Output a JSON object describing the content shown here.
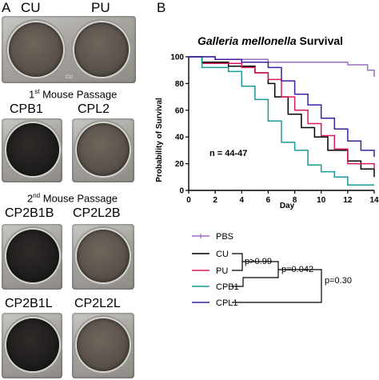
{
  "panel_a": {
    "letter": "A",
    "top_labels": [
      "CU",
      "PU"
    ],
    "passage1_title_num": "1",
    "passage1_title_sup": "st",
    "passage1_title_rest": " Mouse Passage",
    "passage1_labels": [
      "CPB1",
      "CPL2"
    ],
    "passage2_title_num": "2",
    "passage2_title_sup": "nd",
    "passage2_title_rest": " Mouse Passage",
    "passage2_labels_row1": [
      "CP2B1B",
      "CP2L2B"
    ],
    "passage2_labels_row2": [
      "CP2B1L",
      "CP2L2L"
    ],
    "plate_watermark": "CU"
  },
  "panel_b": {
    "letter": "B",
    "annotation": "n = 44-47",
    "legend": {
      "entries": [
        "PBS",
        "CU",
        "PU",
        "CPB1",
        "CPL1"
      ],
      "comparisons": [
        "p>0.99",
        "p=0.042",
        "p=0.30"
      ]
    }
  },
  "colors": {
    "PBS": "#9b6fc3",
    "CU": "#000000",
    "PU": "#d81b60",
    "CPB1": "#1a9a96",
    "CPL1": "#3d1f9e"
  },
  "chart_data": {
    "type": "line",
    "title_italic": "Galleria mellonella",
    "title_rest": " Survival",
    "xlabel": "Day",
    "ylabel": "Probability of Survival",
    "xlim": [
      0,
      14
    ],
    "ylim": [
      0,
      100
    ],
    "xticks": [
      0,
      2,
      4,
      6,
      8,
      10,
      12,
      14
    ],
    "yticks": [
      0,
      20,
      40,
      60,
      80,
      100
    ],
    "grid": false,
    "series": [
      {
        "name": "PBS",
        "step": [
          [
            0,
            100
          ],
          [
            2,
            100
          ],
          [
            2,
            98
          ],
          [
            6,
            98
          ],
          [
            6,
            96
          ],
          [
            12,
            96
          ],
          [
            12,
            94
          ],
          [
            13.5,
            94
          ],
          [
            13.5,
            90
          ],
          [
            14,
            90
          ],
          [
            14,
            85
          ]
        ]
      },
      {
        "name": "CU",
        "step": [
          [
            0,
            100
          ],
          [
            1,
            100
          ],
          [
            1,
            96
          ],
          [
            3,
            96
          ],
          [
            3,
            93
          ],
          [
            5,
            93
          ],
          [
            5,
            88
          ],
          [
            6,
            88
          ],
          [
            6,
            80
          ],
          [
            6.5,
            80
          ],
          [
            6.5,
            70
          ],
          [
            7.5,
            70
          ],
          [
            7.5,
            57
          ],
          [
            8.5,
            57
          ],
          [
            8.5,
            47
          ],
          [
            9.5,
            47
          ],
          [
            9.5,
            40
          ],
          [
            10.5,
            40
          ],
          [
            10.5,
            30
          ],
          [
            12,
            30
          ],
          [
            12,
            22
          ],
          [
            13,
            22
          ],
          [
            13,
            16
          ],
          [
            14,
            16
          ],
          [
            14,
            10
          ]
        ]
      },
      {
        "name": "PU",
        "step": [
          [
            0,
            100
          ],
          [
            1,
            100
          ],
          [
            1,
            95
          ],
          [
            4,
            95
          ],
          [
            4,
            92
          ],
          [
            5,
            92
          ],
          [
            5,
            88
          ],
          [
            6,
            88
          ],
          [
            6,
            83
          ],
          [
            7,
            83
          ],
          [
            7,
            70
          ],
          [
            8,
            70
          ],
          [
            8,
            60
          ],
          [
            9,
            60
          ],
          [
            9,
            50
          ],
          [
            10,
            50
          ],
          [
            10,
            41
          ],
          [
            11,
            41
          ],
          [
            11,
            31
          ],
          [
            12,
            31
          ],
          [
            12,
            20
          ],
          [
            14,
            20
          ],
          [
            14,
            16
          ]
        ]
      },
      {
        "name": "CPB1",
        "step": [
          [
            0,
            100
          ],
          [
            1,
            100
          ],
          [
            1,
            92
          ],
          [
            3,
            92
          ],
          [
            3,
            89
          ],
          [
            4,
            89
          ],
          [
            4,
            78
          ],
          [
            5,
            78
          ],
          [
            5,
            68
          ],
          [
            6,
            68
          ],
          [
            6,
            52
          ],
          [
            7,
            52
          ],
          [
            7,
            36
          ],
          [
            8,
            36
          ],
          [
            8,
            30
          ],
          [
            9,
            30
          ],
          [
            9,
            19
          ],
          [
            10,
            19
          ],
          [
            10,
            14
          ],
          [
            11,
            14
          ],
          [
            11,
            10
          ],
          [
            12,
            10
          ],
          [
            12,
            4
          ],
          [
            14,
            4
          ]
        ]
      },
      {
        "name": "CPL1",
        "step": [
          [
            0,
            100
          ],
          [
            2,
            100
          ],
          [
            2,
            98
          ],
          [
            4,
            98
          ],
          [
            4,
            96
          ],
          [
            6,
            96
          ],
          [
            6,
            92
          ],
          [
            7,
            92
          ],
          [
            7,
            82
          ],
          [
            8,
            82
          ],
          [
            8,
            72
          ],
          [
            9,
            72
          ],
          [
            9,
            64
          ],
          [
            10,
            64
          ],
          [
            10,
            54
          ],
          [
            11,
            54
          ],
          [
            11,
            46
          ],
          [
            12,
            46
          ],
          [
            12,
            37
          ],
          [
            13,
            37
          ],
          [
            13,
            30
          ],
          [
            14,
            30
          ],
          [
            14,
            25
          ]
        ]
      }
    ]
  }
}
